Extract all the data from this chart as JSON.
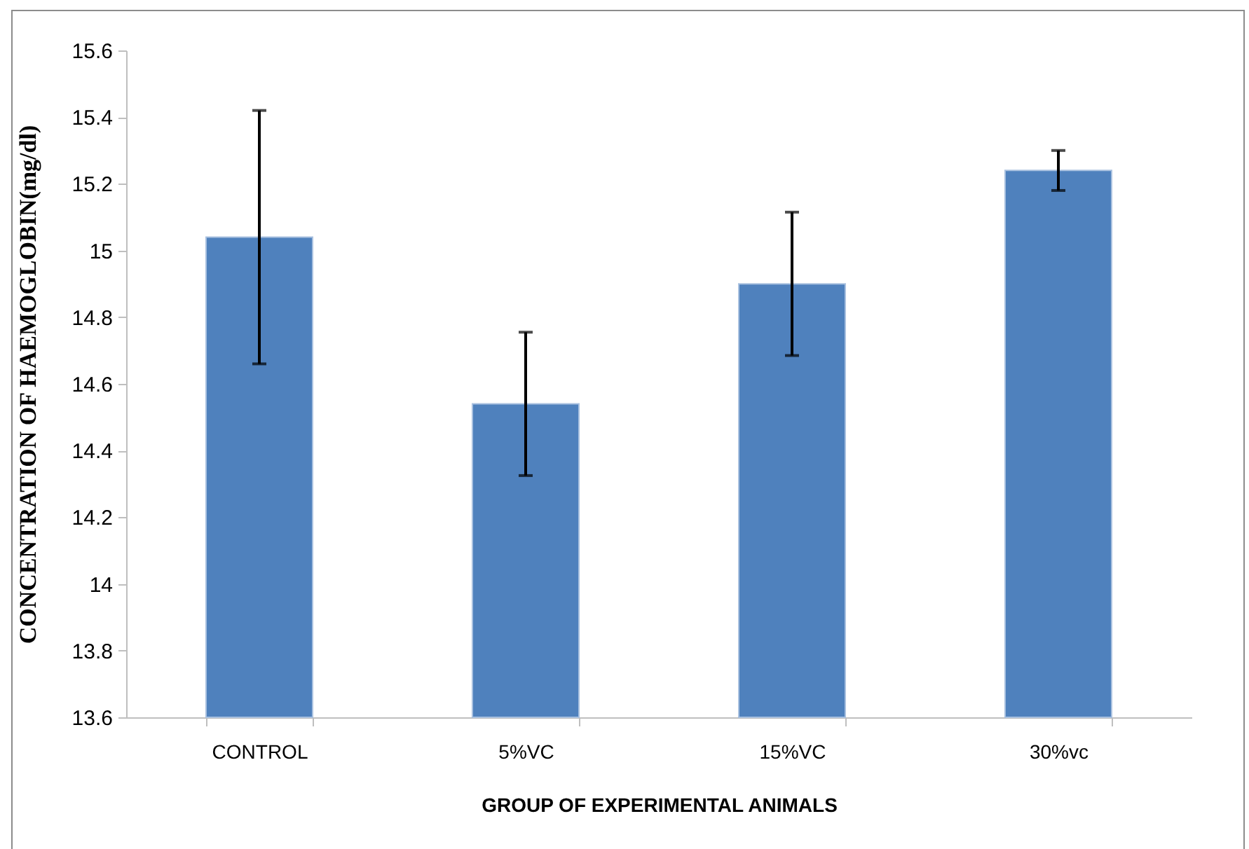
{
  "chart_data": {
    "type": "bar",
    "xlabel": "GROUP OF EXPERIMENTAL ANIMALS",
    "ylabel": "CONCENTRATION OF HAEMOGLOBIN(mg/dl)",
    "categories": [
      "CONTROL",
      "5%VC",
      "15%VC",
      "30%vc"
    ],
    "values": [
      15.04,
      14.54,
      14.9,
      15.24
    ],
    "errors": [
      0.38,
      0.215,
      0.215,
      0.06
    ],
    "color": "#4f81bd",
    "ylim": [
      13.6,
      15.6
    ],
    "yticks": [
      13.6,
      13.8,
      14,
      14.2,
      14.4,
      14.6,
      14.8,
      15,
      15.2,
      15.4,
      15.6
    ],
    "grid": false
  }
}
